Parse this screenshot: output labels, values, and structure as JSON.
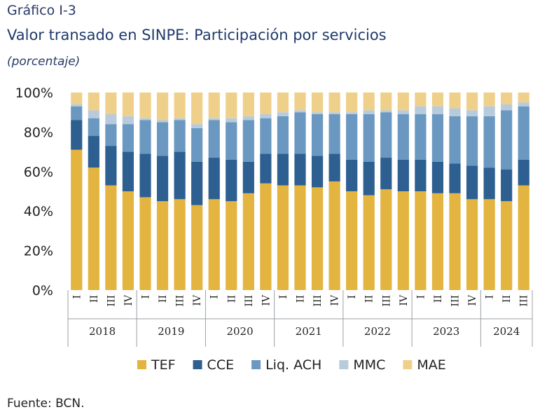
{
  "figure": {
    "number": "Gráfico I-3",
    "title": "Valor transado en SINPE: Participación por servicios",
    "subtitle": "(porcentaje)",
    "source": "Fuente: BCN."
  },
  "chart_data": {
    "type": "bar",
    "stacked": true,
    "categories": [
      "I",
      "II",
      "III",
      "IV",
      "I",
      "II",
      "III",
      "IV",
      "I",
      "II",
      "III",
      "IV",
      "I",
      "II",
      "III",
      "IV",
      "I",
      "II",
      "III",
      "IV",
      "I",
      "II",
      "III",
      "IV",
      "I",
      "II",
      "III"
    ],
    "groups": [
      {
        "label": "2018",
        "count": 4
      },
      {
        "label": "2019",
        "count": 4
      },
      {
        "label": "2020",
        "count": 4
      },
      {
        "label": "2021",
        "count": 4
      },
      {
        "label": "2022",
        "count": 4
      },
      {
        "label": "2023",
        "count": 4
      },
      {
        "label": "2024",
        "count": 3
      }
    ],
    "series": [
      {
        "name": "TEF",
        "color": "#e3b43f",
        "values": [
          71,
          62,
          53,
          50,
          47,
          45,
          46,
          43,
          46,
          45,
          49,
          54,
          53,
          53,
          52,
          55,
          50,
          48,
          51,
          50,
          50,
          49,
          49,
          46,
          46,
          45,
          53
        ]
      },
      {
        "name": "CCE",
        "color": "#2d5f91",
        "values": [
          15,
          16,
          20,
          20,
          22,
          23,
          24,
          22,
          21,
          21,
          16,
          15,
          16,
          16,
          16,
          14,
          16,
          17,
          16,
          16,
          16,
          16,
          15,
          17,
          16,
          16,
          13
        ]
      },
      {
        "name": "Liq. ACH",
        "color": "#6b98c0",
        "values": [
          7,
          9,
          11,
          14,
          17,
          17,
          16,
          17,
          19,
          19,
          21,
          18,
          19,
          21,
          21,
          20,
          23,
          24,
          23,
          23,
          23,
          24,
          24,
          25,
          26,
          30,
          27
        ]
      },
      {
        "name": "MMC",
        "color": "#b7cbdc",
        "values": [
          1,
          4,
          5,
          4,
          1,
          1,
          1,
          2,
          1,
          2,
          2,
          2,
          2,
          1,
          1,
          1,
          1,
          2,
          1,
          2,
          4,
          4,
          4,
          3,
          5,
          3,
          2
        ]
      },
      {
        "name": "MAE",
        "color": "#efd08a",
        "values": [
          6,
          9,
          11,
          12,
          13,
          14,
          13,
          16,
          13,
          13,
          12,
          11,
          10,
          9,
          10,
          10,
          10,
          9,
          9,
          9,
          7,
          7,
          8,
          9,
          7,
          6,
          5
        ]
      }
    ],
    "y_ticks": [
      "0%",
      "20%",
      "40%",
      "60%",
      "80%",
      "100%"
    ],
    "ylim": [
      0,
      100
    ],
    "legend_position": "bottom",
    "grid": false
  }
}
